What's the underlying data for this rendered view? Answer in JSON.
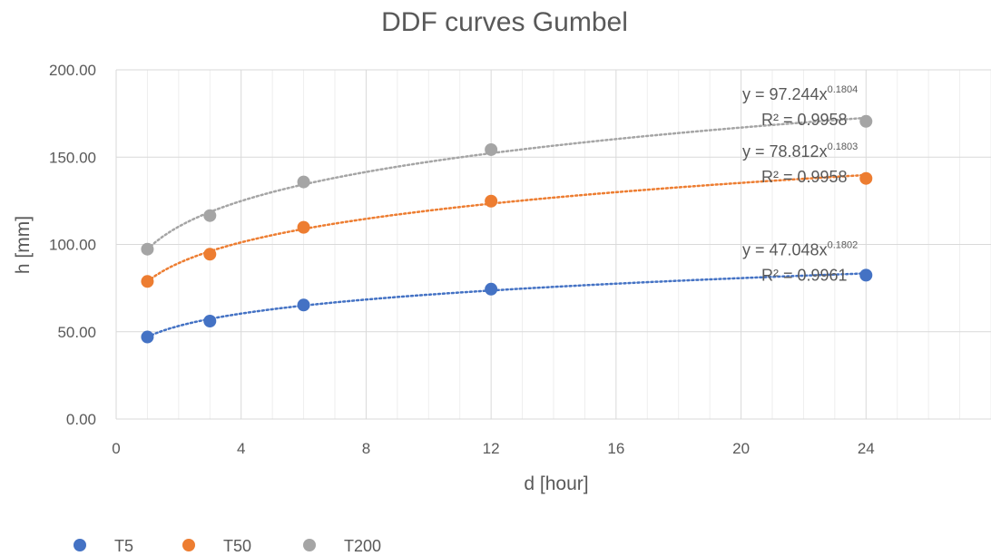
{
  "chart_data": {
    "type": "scatter",
    "title": "DDF curves Gumbel",
    "xlabel": "d [hour]",
    "ylabel": "h [mm]",
    "xlim": [
      0,
      28
    ],
    "ylim": [
      0,
      200
    ],
    "x_ticks": [
      0,
      4,
      8,
      12,
      16,
      20,
      24
    ],
    "y_ticks": [
      "0.00",
      "50.00",
      "100.00",
      "150.00",
      "200.00"
    ],
    "y_tick_values": [
      0,
      50,
      100,
      150,
      200
    ],
    "grid": true,
    "legend_position": "bottom-left",
    "series": [
      {
        "name": "T5",
        "color": "#4472C4",
        "x": [
          1,
          3,
          6,
          12,
          24
        ],
        "y": [
          47.0,
          56.1,
          65.3,
          74.4,
          82.4
        ],
        "trendline": {
          "type": "power",
          "a": 47.048,
          "b": 0.1802,
          "equation": "y = 47.048x",
          "exponent": "0.1802",
          "r2": "R² = 0.9961"
        }
      },
      {
        "name": "T50",
        "color": "#ED7D31",
        "x": [
          1,
          3,
          6,
          12,
          24
        ],
        "y": [
          78.8,
          94.4,
          109.8,
          124.8,
          137.8
        ],
        "trendline": {
          "type": "power",
          "a": 78.812,
          "b": 0.1803,
          "equation": "y = 78.812x",
          "exponent": "0.1803",
          "r2": "R² = 0.9958"
        }
      },
      {
        "name": "T200",
        "color": "#A5A5A5",
        "x": [
          1,
          3,
          6,
          12,
          24
        ],
        "y": [
          97.3,
          116.5,
          135.8,
          154.3,
          170.5
        ],
        "trendline": {
          "type": "power",
          "a": 97.244,
          "b": 0.1804,
          "equation": "y = 97.244x",
          "exponent": "0.1804",
          "r2": "R² = 0.9958"
        }
      }
    ]
  }
}
